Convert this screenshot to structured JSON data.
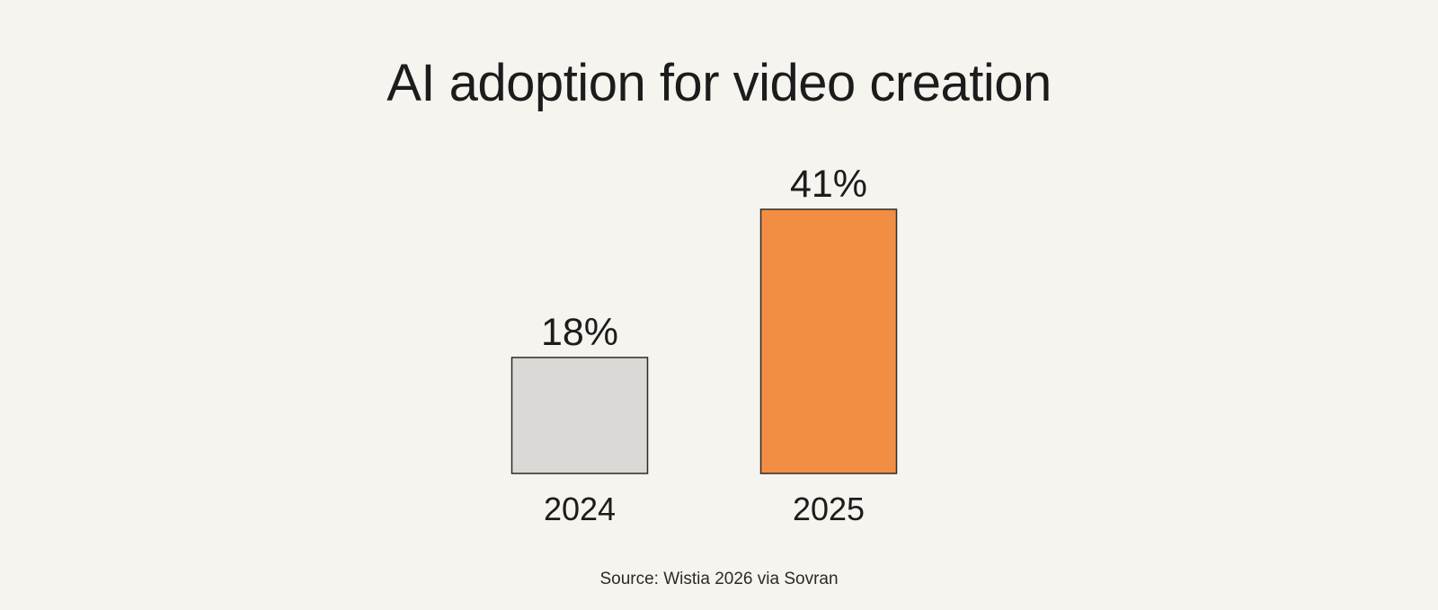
{
  "title": "AI adoption for video creation",
  "source": "Source: Wistia 2026 via Sovran",
  "colors": {
    "background": "#f6f4ef",
    "bar_2024": "#dcd8d5",
    "bar_2025": "#f28e43",
    "bar_outline": "#2b2b2b",
    "text": "#1c1c1c"
  },
  "chart_data": {
    "type": "bar",
    "categories": [
      "2024",
      "2025"
    ],
    "values": [
      18,
      41
    ],
    "value_labels": [
      "18%",
      "41%"
    ],
    "title": "AI adoption for video creation",
    "xlabel": "",
    "ylabel": "",
    "ylim": [
      0,
      41
    ],
    "grid": false,
    "legend": "none"
  }
}
